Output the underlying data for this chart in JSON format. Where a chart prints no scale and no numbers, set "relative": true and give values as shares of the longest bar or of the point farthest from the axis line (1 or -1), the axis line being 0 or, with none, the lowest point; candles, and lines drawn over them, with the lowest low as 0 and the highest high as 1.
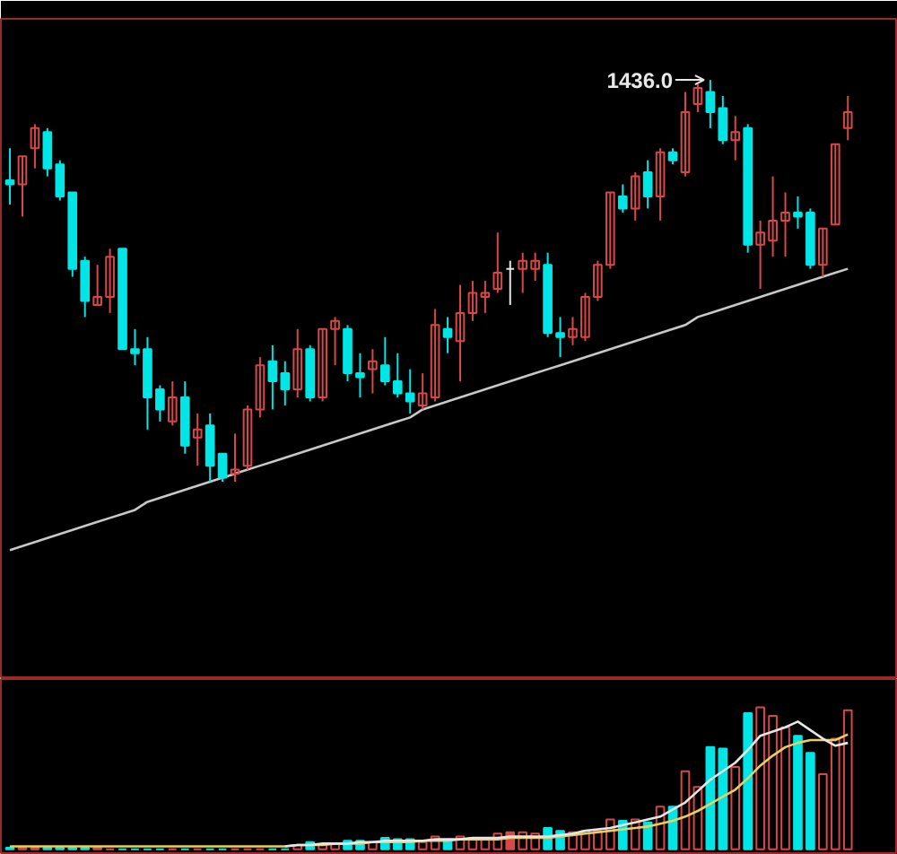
{
  "chart_data": [
    {
      "type": "candlestick",
      "relative": true,
      "categories": [
        null,
        null,
        null,
        null,
        null,
        null,
        null,
        null,
        null,
        null,
        null,
        null,
        null,
        null,
        null,
        null,
        null,
        null,
        null,
        null,
        null,
        null,
        null,
        null,
        null,
        null,
        null,
        null,
        null,
        null,
        null,
        null,
        null,
        null,
        null,
        null,
        null,
        null,
        null,
        null,
        null,
        null,
        null,
        null,
        null,
        null,
        null,
        null,
        null,
        null,
        null,
        null,
        null,
        null,
        null,
        null,
        null,
        null,
        null,
        null,
        null,
        null,
        null,
        null,
        null,
        null,
        null,
        null
      ],
      "ohlc": [
        [
          0.75,
          0.83,
          0.69,
          0.74
        ],
        [
          0.74,
          0.81,
          0.66,
          0.81
        ],
        [
          0.83,
          0.89,
          0.78,
          0.88
        ],
        [
          0.87,
          0.88,
          0.76,
          0.78
        ],
        [
          0.79,
          0.8,
          0.7,
          0.71
        ],
        [
          0.72,
          0.72,
          0.51,
          0.53
        ],
        [
          0.55,
          0.56,
          0.41,
          0.45
        ],
        [
          0.44,
          0.54,
          0.44,
          0.46
        ],
        [
          0.46,
          0.58,
          0.42,
          0.56
        ],
        [
          0.58,
          0.58,
          0.33,
          0.33
        ],
        [
          0.33,
          0.38,
          0.29,
          0.32
        ],
        [
          0.33,
          0.36,
          0.13,
          0.21
        ],
        [
          0.23,
          0.24,
          0.15,
          0.18
        ],
        [
          0.15,
          0.25,
          0.14,
          0.21
        ],
        [
          0.21,
          0.25,
          0.07,
          0.09
        ],
        [
          0.11,
          0.17,
          0.04,
          0.13
        ],
        [
          0.14,
          0.17,
          0.0,
          0.04
        ],
        [
          0.07,
          0.07,
          0.0,
          0.01
        ],
        [
          0.02,
          0.12,
          0.0,
          0.03
        ],
        [
          0.04,
          0.19,
          0.03,
          0.18
        ],
        [
          0.18,
          0.31,
          0.16,
          0.29
        ],
        [
          0.3,
          0.34,
          0.18,
          0.25
        ],
        [
          0.27,
          0.3,
          0.19,
          0.23
        ],
        [
          0.23,
          0.38,
          0.21,
          0.33
        ],
        [
          0.33,
          0.34,
          0.2,
          0.21
        ],
        [
          0.21,
          0.38,
          0.2,
          0.38
        ],
        [
          0.38,
          0.41,
          0.29,
          0.4
        ],
        [
          0.38,
          0.39,
          0.25,
          0.27
        ],
        [
          0.27,
          0.32,
          0.21,
          0.26
        ],
        [
          0.28,
          0.33,
          0.22,
          0.3
        ],
        [
          0.29,
          0.36,
          0.24,
          0.25
        ],
        [
          0.25,
          0.32,
          0.21,
          0.22
        ],
        [
          0.22,
          0.28,
          0.17,
          0.2
        ],
        [
          0.19,
          0.27,
          0.18,
          0.22
        ],
        [
          0.21,
          0.43,
          0.2,
          0.39
        ],
        [
          0.38,
          0.41,
          0.32,
          0.36
        ],
        [
          0.35,
          0.49,
          0.25,
          0.42
        ],
        [
          0.42,
          0.5,
          0.4,
          0.47
        ],
        [
          0.46,
          0.5,
          0.42,
          0.47
        ],
        [
          0.48,
          0.62,
          0.47,
          0.52
        ],
        [
          0.53,
          0.55,
          0.44,
          0.53
        ],
        [
          0.53,
          0.57,
          0.47,
          0.55
        ],
        [
          0.53,
          0.57,
          0.5,
          0.55
        ],
        [
          0.54,
          0.57,
          0.36,
          0.37
        ],
        [
          0.37,
          0.41,
          0.31,
          0.36
        ],
        [
          0.36,
          0.41,
          0.34,
          0.38
        ],
        [
          0.36,
          0.47,
          0.35,
          0.46
        ],
        [
          0.46,
          0.55,
          0.45,
          0.54
        ],
        [
          0.54,
          0.72,
          0.53,
          0.72
        ],
        [
          0.71,
          0.74,
          0.67,
          0.68
        ],
        [
          0.68,
          0.77,
          0.65,
          0.76
        ],
        [
          0.77,
          0.8,
          0.68,
          0.71
        ],
        [
          0.71,
          0.83,
          0.65,
          0.82
        ],
        [
          0.82,
          0.83,
          0.79,
          0.8
        ],
        [
          0.77,
          0.97,
          0.76,
          0.92
        ],
        [
          0.94,
          0.99,
          0.92,
          0.98
        ],
        [
          0.97,
          1.0,
          0.88,
          0.92
        ],
        [
          0.93,
          0.96,
          0.84,
          0.85
        ],
        [
          0.85,
          0.91,
          0.8,
          0.87
        ],
        [
          0.88,
          0.89,
          0.57,
          0.59
        ],
        [
          0.59,
          0.65,
          0.48,
          0.62
        ],
        [
          0.6,
          0.76,
          0.56,
          0.65
        ],
        [
          0.65,
          0.72,
          0.56,
          0.67
        ],
        [
          0.67,
          0.71,
          0.63,
          0.66
        ],
        [
          0.67,
          0.68,
          0.53,
          0.54
        ],
        [
          0.54,
          0.63,
          0.51,
          0.63
        ],
        [
          0.64,
          0.84,
          0.64,
          0.84
        ],
        [
          0.88,
          0.96,
          0.85,
          0.92
        ]
      ],
      "colors": [
        "#00e5e5",
        "#d84848",
        "#d84848",
        "#00e5e5",
        "#00e5e5",
        "#00e5e5",
        "#00e5e5",
        "#d84848",
        "#d84848",
        "#00e5e5",
        "#00e5e5",
        "#00e5e5",
        "#00e5e5",
        "#d84848",
        "#00e5e5",
        "#d84848",
        "#00e5e5",
        "#00e5e5",
        "#d84848",
        "#d84848",
        "#d84848",
        "#00e5e5",
        "#00e5e5",
        "#d84848",
        "#00e5e5",
        "#d84848",
        "#d84848",
        "#00e5e5",
        "#00e5e5",
        "#d84848",
        "#00e5e5",
        "#00e5e5",
        "#00e5e5",
        "#d84848",
        "#d84848",
        "#00e5e5",
        "#d84848",
        "#d84848",
        "#d84848",
        "#d84848",
        "#e6e6e6",
        "#d84848",
        "#d84848",
        "#00e5e5",
        "#00e5e5",
        "#d84848",
        "#d84848",
        "#d84848",
        "#d84848",
        "#00e5e5",
        "#d84848",
        "#00e5e5",
        "#d84848",
        "#00e5e5",
        "#d84848",
        "#d84848",
        "#00e5e5",
        "#00e5e5",
        "#d84848",
        "#00e5e5",
        "#d84848",
        "#d84848",
        "#d84848",
        "#00e5e5",
        "#00e5e5",
        "#d84848",
        "#d84848",
        "#d84848"
      ],
      "series": [
        {
          "type": "line",
          "values": [
            -0.17,
            -0.16,
            -0.15,
            -0.14,
            -0.13,
            -0.12,
            -0.11,
            -0.1,
            -0.09,
            -0.08,
            -0.07,
            -0.05,
            -0.04,
            -0.03,
            -0.02,
            -0.01,
            0.0,
            0.01,
            0.02,
            0.03,
            0.04,
            0.05,
            0.06,
            0.07,
            0.08,
            0.09,
            0.1,
            0.11,
            0.12,
            0.13,
            0.14,
            0.15,
            0.16,
            0.18,
            0.19,
            0.2,
            0.21,
            0.22,
            0.23,
            0.24,
            0.25,
            0.26,
            0.27,
            0.28,
            0.29,
            0.3,
            0.31,
            0.32,
            0.33,
            0.34,
            0.35,
            0.36,
            0.37,
            0.38,
            0.39,
            0.41,
            0.42,
            0.43,
            0.44,
            0.45,
            0.46,
            0.47,
            0.48,
            0.49,
            0.5,
            0.51,
            0.52,
            0.53
          ],
          "color": "#c8c8c8"
        }
      ],
      "annotations": [
        "1436.0"
      ]
    },
    {
      "type": "bar",
      "relative": true,
      "categories": [
        null,
        null,
        null,
        null,
        null,
        null,
        null,
        null,
        null,
        null,
        null,
        null,
        null,
        null,
        null,
        null,
        null,
        null,
        null,
        null,
        null,
        null,
        null,
        null,
        null,
        null,
        null,
        null,
        null,
        null,
        null,
        null,
        null,
        null,
        null,
        null,
        null,
        null,
        null,
        null,
        null,
        null,
        null,
        null,
        null,
        null,
        null,
        null,
        null,
        null,
        null,
        null,
        null,
        null,
        null,
        null,
        null,
        null,
        null,
        null,
        null,
        null,
        null,
        null,
        null,
        null,
        null,
        null
      ],
      "values": [
        0.01,
        0.01,
        0.01,
        0.01,
        0.01,
        0.01,
        0.01,
        0.01,
        0,
        0,
        0,
        0,
        0,
        0,
        0,
        0,
        0,
        0,
        0,
        0,
        0,
        0,
        0,
        0.03,
        0.05,
        0.03,
        0.04,
        0.06,
        0.06,
        0.05,
        0.08,
        0.07,
        0.07,
        0.05,
        0.09,
        0.06,
        0.09,
        0.08,
        0.08,
        0.11,
        0.12,
        0.12,
        0.11,
        0.15,
        0.13,
        0.12,
        0.13,
        0.13,
        0.21,
        0.2,
        0.21,
        0.19,
        0.3,
        0.3,
        0.55,
        0.44,
        0.72,
        0.71,
        0.58,
        0.96,
        1,
        0.94,
        0.86,
        0.8,
        0.68,
        0.53,
        0.78,
        0.98
      ],
      "colors": [
        "#00e5e5",
        "#d84848",
        "#d84848",
        "#00e5e5",
        "#00e5e5",
        "#00e5e5",
        "#00e5e5",
        "#d84848",
        "#d84848",
        "#00e5e5",
        "#00e5e5",
        "#00e5e5",
        "#00e5e5",
        "#d84848",
        "#00e5e5",
        "#d84848",
        "#00e5e5",
        "#00e5e5",
        "#d84848",
        "#d84848",
        "#d84848",
        "#00e5e5",
        "#00e5e5",
        "#d84848",
        "#00e5e5",
        "#d84848",
        "#d84848",
        "#00e5e5",
        "#00e5e5",
        "#d84848",
        "#00e5e5",
        "#00e5e5",
        "#00e5e5",
        "#d84848",
        "#d84848",
        "#00e5e5",
        "#d84848",
        "#d84848",
        "#d84848",
        "#d84848",
        "#d84848",
        "#d84848",
        "#d84848",
        "#00e5e5",
        "#00e5e5",
        "#d84848",
        "#d84848",
        "#d84848",
        "#d84848",
        "#00e5e5",
        "#d84848",
        "#00e5e5",
        "#d84848",
        "#00e5e5",
        "#d84848",
        "#d84848",
        "#00e5e5",
        "#00e5e5",
        "#d84848",
        "#00e5e5",
        "#d84848",
        "#d84848",
        "#d84848",
        "#00e5e5",
        "#00e5e5",
        "#d84848",
        "#d84848",
        "#d84848"
      ],
      "series": [
        {
          "type": "line",
          "values": [
            0.02,
            0.02,
            0.02,
            0.02,
            0.02,
            0.02,
            0.02,
            0.02,
            0.02,
            0.02,
            0.02,
            0.02,
            0.02,
            0.02,
            0.02,
            0.02,
            0.02,
            0.02,
            0.02,
            0.02,
            0.02,
            0.02,
            0.02,
            0.03,
            0.03,
            0.03,
            0.04,
            0.04,
            0.04,
            0.05,
            0.05,
            0.05,
            0.05,
            0.06,
            0.06,
            0.06,
            0.07,
            0.07,
            0.07,
            0.07,
            0.08,
            0.08,
            0.08,
            0.08,
            0.09,
            0.1,
            0.11,
            0.12,
            0.13,
            0.14,
            0.15,
            0.16,
            0.18,
            0.2,
            0.23,
            0.27,
            0.32,
            0.37,
            0.42,
            0.5,
            0.59,
            0.66,
            0.72,
            0.75,
            0.77,
            0.77,
            0.77,
            0.81
          ],
          "color": "#e8d060"
        },
        {
          "type": "line",
          "values": [
            null,
            null,
            null,
            null,
            null,
            null,
            null,
            null,
            null,
            null,
            null,
            null,
            null,
            null,
            null,
            null,
            null,
            null,
            null,
            null,
            null,
            null,
            0.02,
            0.03,
            0.03,
            0.04,
            0.04,
            0.04,
            0.05,
            0.05,
            0.06,
            0.06,
            0.06,
            0.06,
            0.07,
            0.07,
            0.07,
            0.08,
            0.08,
            0.08,
            0.09,
            0.09,
            0.09,
            0.09,
            0.1,
            0.11,
            0.13,
            0.14,
            0.15,
            0.17,
            0.19,
            0.21,
            0.23,
            0.28,
            0.33,
            0.41,
            0.49,
            0.55,
            0.61,
            0.7,
            0.8,
            0.83,
            0.86,
            0.9,
            0.84,
            0.78,
            0.73,
            0.75
          ],
          "color": "#e6e6e6"
        }
      ]
    }
  ]
}
